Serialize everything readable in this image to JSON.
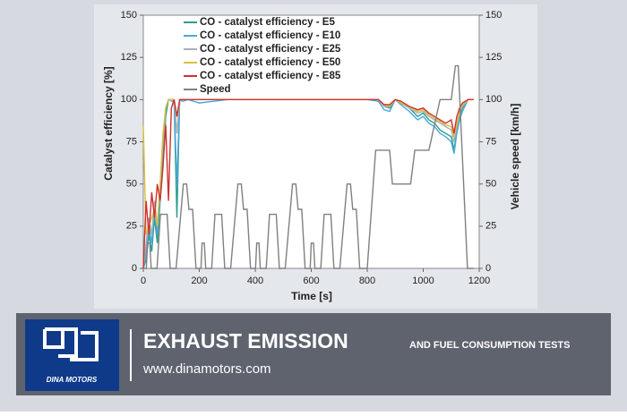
{
  "chart_data": {
    "type": "line",
    "xlabel": "Time [s]",
    "ylabel": "Catalyst efficiency [%]",
    "y2label": "Vehicle speed [km/h]",
    "xlim": [
      0,
      1200
    ],
    "xticks": [
      0,
      200,
      400,
      600,
      800,
      1000,
      1200
    ],
    "ylim": [
      0,
      150
    ],
    "yticks": [
      0,
      25,
      50,
      75,
      100,
      125,
      150
    ],
    "y2lim": [
      0,
      150
    ],
    "y2ticks": [
      0,
      25,
      50,
      75,
      100,
      125,
      150
    ],
    "legend": "upper left",
    "grid": false,
    "x": [
      0,
      10,
      20,
      30,
      40,
      50,
      60,
      70,
      80,
      90,
      100,
      110,
      120,
      130,
      140,
      160,
      200,
      300,
      400,
      500,
      600,
      700,
      800,
      840,
      860,
      880,
      900,
      920,
      950,
      980,
      1000,
      1020,
      1040,
      1060,
      1080,
      1100,
      1110,
      1120,
      1130,
      1140,
      1160,
      1180
    ],
    "series": [
      {
        "name": "CO - catalyst efficiency - E5",
        "color": "#2a9d8f",
        "values": [
          0,
          5,
          20,
          10,
          30,
          15,
          40,
          60,
          90,
          100,
          100,
          98,
          30,
          100,
          100,
          100,
          100,
          100,
          100,
          100,
          100,
          100,
          100,
          100,
          96,
          95,
          100,
          98,
          95,
          90,
          92,
          88,
          86,
          82,
          80,
          78,
          70,
          82,
          90,
          95,
          100,
          100
        ]
      },
      {
        "name": "CO - catalyst efficiency - E10",
        "color": "#4aa8d8",
        "values": [
          0,
          10,
          25,
          15,
          35,
          20,
          45,
          70,
          95,
          100,
          100,
          99,
          50,
          100,
          99,
          100,
          98,
          100,
          100,
          100,
          100,
          100,
          100,
          99,
          94,
          93,
          100,
          97,
          93,
          88,
          90,
          86,
          84,
          80,
          78,
          75,
          68,
          80,
          88,
          93,
          100,
          100
        ]
      },
      {
        "name": "CO - catalyst efficiency - E25",
        "color": "#a8b0b8",
        "values": [
          0,
          15,
          30,
          20,
          40,
          25,
          50,
          75,
          95,
          100,
          99,
          100,
          80,
          100,
          100,
          100,
          100,
          100,
          100,
          100,
          100,
          100,
          100,
          100,
          96,
          96,
          100,
          98,
          95,
          92,
          93,
          90,
          88,
          86,
          84,
          82,
          75,
          84,
          92,
          96,
          100,
          100
        ]
      },
      {
        "name": "CO - catalyst efficiency - E50",
        "color": "#d8c040",
        "values": [
          85,
          20,
          25,
          30,
          35,
          25,
          50,
          80,
          95,
          100,
          100,
          100,
          90,
          100,
          100,
          100,
          100,
          100,
          100,
          100,
          100,
          100,
          100,
          100,
          97,
          96,
          100,
          98,
          96,
          93,
          94,
          91,
          89,
          87,
          85,
          84,
          78,
          86,
          93,
          97,
          100,
          100
        ]
      },
      {
        "name": "CO - catalyst efficiency - E85",
        "color": "#d03030",
        "values": [
          0,
          40,
          20,
          45,
          30,
          50,
          40,
          60,
          85,
          40,
          95,
          100,
          90,
          100,
          100,
          100,
          100,
          100,
          100,
          100,
          100,
          100,
          100,
          100,
          97,
          97,
          100,
          99,
          96,
          94,
          95,
          92,
          90,
          88,
          86,
          88,
          80,
          90,
          95,
          98,
          100,
          100
        ]
      },
      {
        "name": "Speed",
        "color": "#808080",
        "axis": "y2",
        "x": [
          0,
          11,
          15,
          23,
          28,
          49,
          61,
          85,
          96,
          117,
          143,
          155,
          163,
          176,
          188,
          206,
          210,
          218,
          223,
          244,
          256,
          280,
          291,
          312,
          338,
          350,
          358,
          371,
          383,
          401,
          405,
          413,
          418,
          439,
          451,
          475,
          486,
          507,
          533,
          545,
          553,
          566,
          578,
          596,
          600,
          608,
          613,
          634,
          646,
          670,
          681,
          702,
          728,
          740,
          748,
          761,
          773,
          800,
          830,
          880,
          890,
          955,
          970,
          1020,
          1060,
          1100,
          1115,
          1125,
          1158,
          1180
        ],
        "values": [
          0,
          0,
          15,
          15,
          0,
          0,
          32,
          32,
          0,
          0,
          50,
          50,
          35,
          35,
          0,
          0,
          15,
          15,
          0,
          0,
          32,
          32,
          0,
          0,
          50,
          50,
          35,
          35,
          0,
          0,
          15,
          15,
          0,
          0,
          32,
          32,
          0,
          0,
          50,
          50,
          35,
          35,
          0,
          0,
          15,
          15,
          0,
          0,
          32,
          32,
          0,
          0,
          50,
          50,
          35,
          35,
          0,
          0,
          70,
          70,
          50,
          50,
          70,
          70,
          100,
          100,
          120,
          120,
          0,
          0
        ]
      }
    ]
  },
  "banner": {
    "title": "EXHAUST EMISSION",
    "subtitle": "AND FUEL CONSUMPTION TESTS",
    "url": "www.dinamotors.com",
    "logo_text": "DINA MOTORS"
  }
}
